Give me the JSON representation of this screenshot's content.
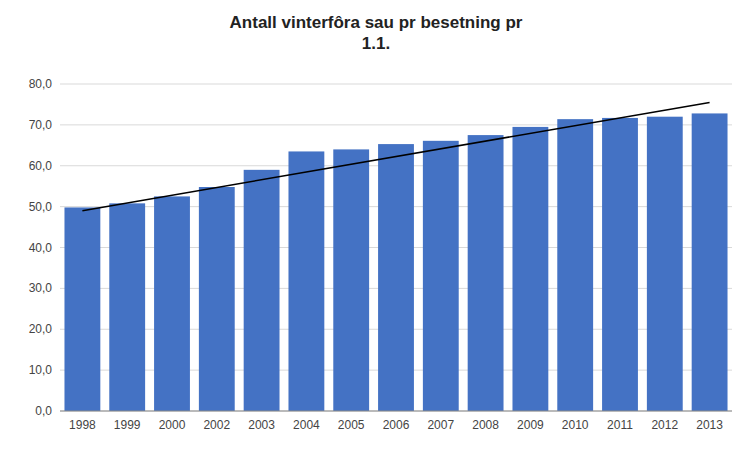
{
  "chart_data": {
    "type": "bar",
    "title": "Antall vinterfôra sau pr besetning pr\n1.1.",
    "categories": [
      "1998",
      "1999",
      "2000",
      "2002",
      "2003",
      "2004",
      "2005",
      "2006",
      "2007",
      "2008",
      "2009",
      "2010",
      "2011",
      "2012",
      "2013"
    ],
    "values": [
      49.8,
      50.8,
      52.5,
      54.8,
      59.0,
      63.5,
      64.0,
      65.3,
      66.1,
      67.5,
      69.5,
      71.4,
      71.7,
      72.0,
      72.8
    ],
    "color": "#4472C4",
    "trendline": {
      "values": [
        49.0,
        75.5
      ],
      "color": "#000000"
    },
    "ylim": [
      0,
      80
    ],
    "yticks": [
      {
        "value": 0,
        "label": "0,0"
      },
      {
        "value": 10,
        "label": "10,0"
      },
      {
        "value": 20,
        "label": "20,0"
      },
      {
        "value": 30,
        "label": "30,0"
      },
      {
        "value": 40,
        "label": "40,0"
      },
      {
        "value": 50,
        "label": "50,0"
      },
      {
        "value": 60,
        "label": "60,0"
      },
      {
        "value": 70,
        "label": "70,0"
      },
      {
        "value": 80,
        "label": "80,0"
      }
    ],
    "grid": true
  }
}
